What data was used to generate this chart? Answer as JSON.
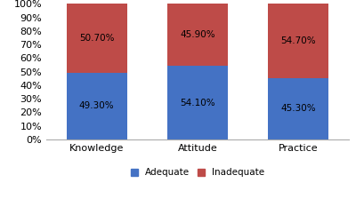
{
  "categories": [
    "Knowledge",
    "Attitude",
    "Practice"
  ],
  "adequate": [
    49.3,
    54.1,
    45.3
  ],
  "inadequate": [
    50.7,
    45.9,
    54.7
  ],
  "adequate_color": "#4472C4",
  "inadequate_color": "#BE4B48",
  "adequate_label": "Adequate",
  "inadequate_label": "Inadequate",
  "ylabel_ticks": [
    "0%",
    "10%",
    "20%",
    "30%",
    "40%",
    "50%",
    "60%",
    "70%",
    "80%",
    "90%",
    "100%"
  ],
  "ytick_vals": [
    0,
    10,
    20,
    30,
    40,
    50,
    60,
    70,
    80,
    90,
    100
  ],
  "bar_width": 0.6,
  "background_color": "#FFFFFF",
  "text_fontsize": 7.5,
  "label_fontsize": 8,
  "legend_fontsize": 7.5
}
